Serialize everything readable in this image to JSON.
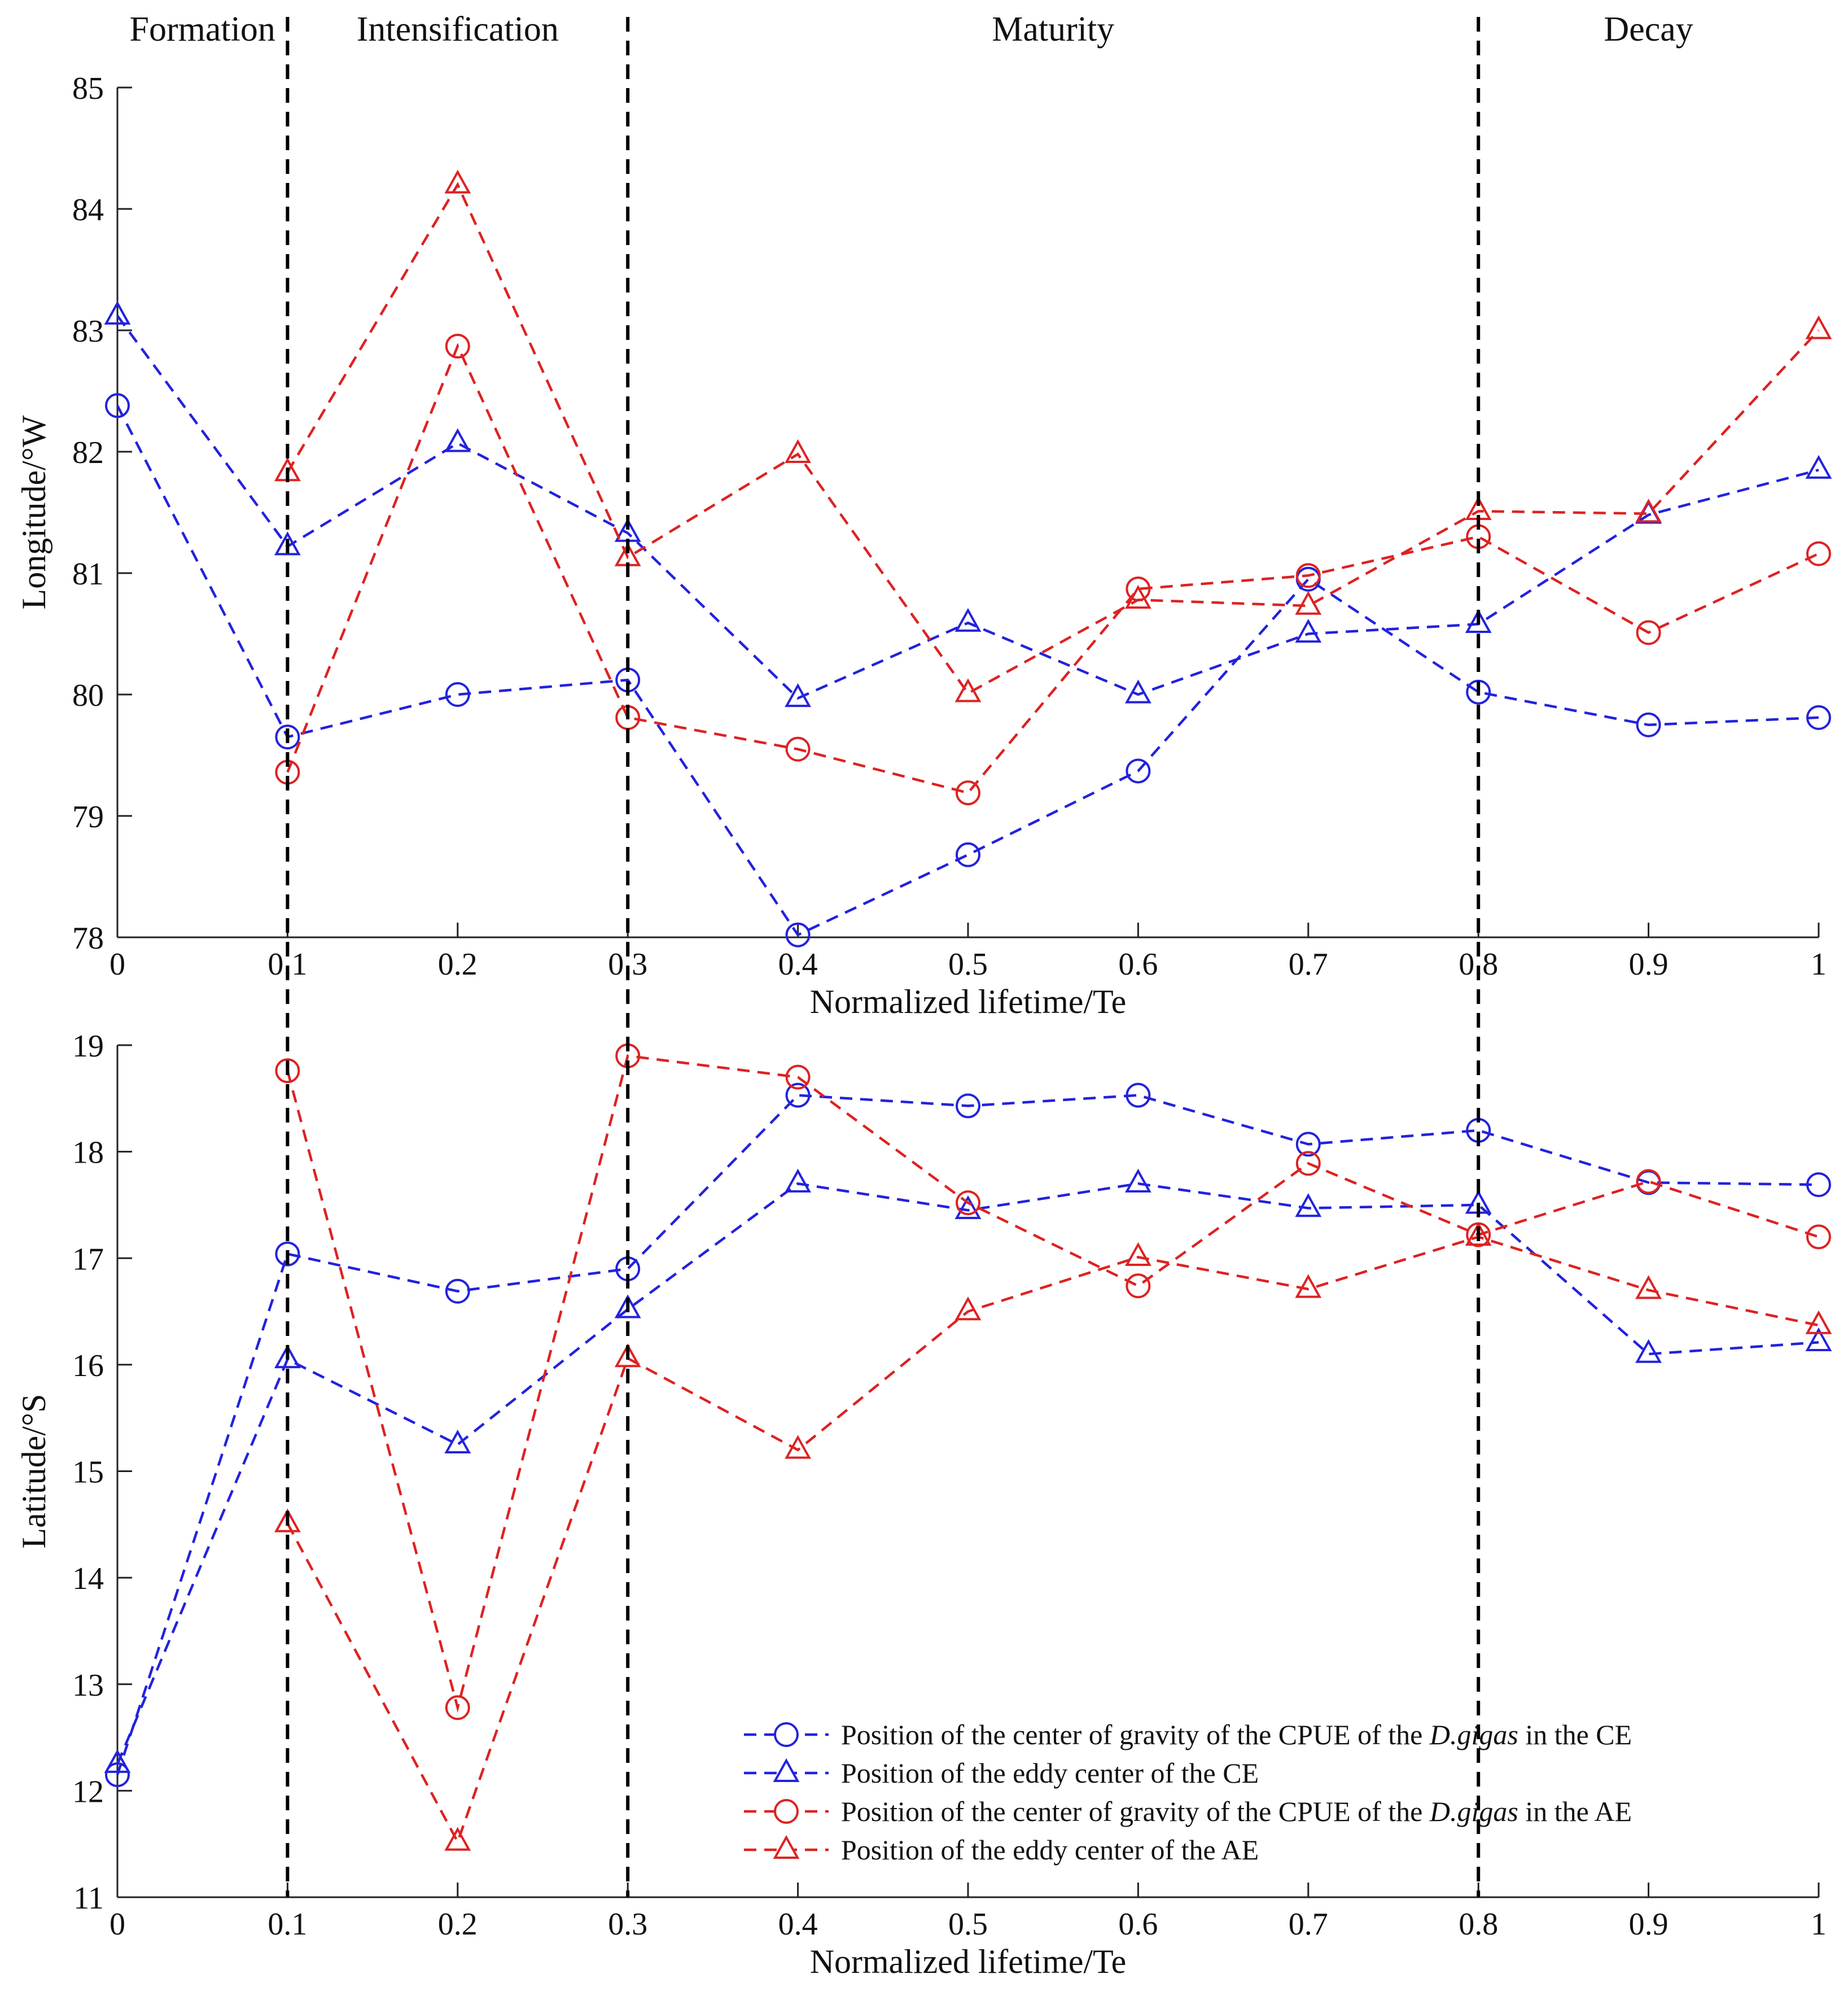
{
  "chart_data": [
    {
      "type": "line",
      "name": "longitude",
      "xlabel": "Normalized lifetime/Te",
      "ylabel": "Longitude/°W",
      "xlim": [
        0,
        1
      ],
      "ylim": [
        78,
        85
      ],
      "x": [
        0,
        0.1,
        0.2,
        0.3,
        0.4,
        0.5,
        0.6,
        0.7,
        0.8,
        0.9,
        1
      ],
      "x_tick_labels": [
        "0",
        "0.1",
        "0.2",
        "0.3",
        "0.4",
        "0.5",
        "0.6",
        "0.7",
        "0.8",
        "0.9",
        "1"
      ],
      "y_ticks": [
        78,
        79,
        80,
        81,
        82,
        83,
        84,
        85
      ],
      "y_tick_labels": [
        "78",
        "79",
        "80",
        "81",
        "82",
        "83",
        "84",
        "85"
      ],
      "series": [
        {
          "name": "Position of the center of gravity of the CPUE of the D.gigas in the CE",
          "color": "#2222dd",
          "marker": "circle",
          "values": [
            82.38,
            79.65,
            80.0,
            80.12,
            78.02,
            78.68,
            79.37,
            80.95,
            80.02,
            79.75,
            79.81
          ]
        },
        {
          "name": "Position of the eddy center of the CE",
          "color": "#2222dd",
          "marker": "triangle",
          "values": [
            83.12,
            81.22,
            82.07,
            81.33,
            79.97,
            80.59,
            80.0,
            80.5,
            80.58,
            81.48,
            81.85
          ]
        },
        {
          "name": "Position of the center of gravity of the CPUE of the D.gigas in the AE",
          "color": "#dd2222",
          "marker": "circle",
          "values": [
            null,
            79.36,
            82.87,
            79.81,
            79.55,
            79.19,
            80.87,
            80.98,
            81.3,
            80.51,
            81.16
          ]
        },
        {
          "name": "Position of the eddy center of the AE",
          "color": "#dd2222",
          "marker": "triangle",
          "values": [
            null,
            81.83,
            84.2,
            81.13,
            81.98,
            80.01,
            80.78,
            80.73,
            81.51,
            81.49,
            83.0
          ]
        }
      ]
    },
    {
      "type": "line",
      "name": "latitude",
      "xlabel": "Normalized lifetime/Te",
      "ylabel": "Latitude/°S",
      "xlim": [
        0,
        1
      ],
      "ylim": [
        11,
        19
      ],
      "x": [
        0,
        0.1,
        0.2,
        0.3,
        0.4,
        0.5,
        0.6,
        0.7,
        0.8,
        0.9,
        1
      ],
      "x_tick_labels": [
        "0",
        "0.1",
        "0.2",
        "0.3",
        "0.4",
        "0.5",
        "0.6",
        "0.7",
        "0.8",
        "0.9",
        "1"
      ],
      "y_ticks": [
        11,
        12,
        13,
        14,
        15,
        16,
        17,
        18,
        19
      ],
      "y_tick_labels": [
        "11",
        "12",
        "13",
        "14",
        "15",
        "16",
        "17",
        "18",
        "19"
      ],
      "series": [
        {
          "name": "Position of the center of gravity of the CPUE of the D.gigas in the CE",
          "color": "#2222dd",
          "marker": "circle",
          "values": [
            12.15,
            17.04,
            16.69,
            16.9,
            18.53,
            18.43,
            18.53,
            18.07,
            18.2,
            17.71,
            17.69
          ]
        },
        {
          "name": "Position of the eddy center of the CE",
          "color": "#2222dd",
          "marker": "triangle",
          "values": [
            12.25,
            16.05,
            15.25,
            16.52,
            17.7,
            17.45,
            17.7,
            17.47,
            17.5,
            16.1,
            16.21
          ]
        },
        {
          "name": "Position of the center of gravity of the CPUE of the D.gigas in the AE",
          "color": "#dd2222",
          "marker": "circle",
          "values": [
            null,
            18.76,
            12.78,
            18.9,
            18.7,
            17.52,
            16.74,
            17.89,
            17.22,
            17.72,
            17.2
          ]
        },
        {
          "name": "Position of the eddy center of the AE",
          "color": "#dd2222",
          "marker": "triangle",
          "values": [
            null,
            14.51,
            11.52,
            16.06,
            15.2,
            16.5,
            17.01,
            16.71,
            17.2,
            16.7,
            16.37
          ]
        }
      ]
    }
  ],
  "phases": [
    {
      "label": "Formation",
      "from": 0,
      "to": 0.1
    },
    {
      "label": "Intensification",
      "from": 0.1,
      "to": 0.3
    },
    {
      "label": "Maturity",
      "from": 0.3,
      "to": 0.8
    },
    {
      "label": "Decay",
      "from": 0.8,
      "to": 1.0
    }
  ],
  "phase_boundaries": [
    0.1,
    0.3,
    0.8
  ],
  "legend": [
    {
      "text": "Position of the center of gravity of the CPUE of the ",
      "species": "D.gigas",
      "suffix": " in the CE",
      "color": "#2222dd",
      "marker": "circle"
    },
    {
      "text": "Position of the eddy center of the CE",
      "species": "",
      "suffix": "",
      "color": "#2222dd",
      "marker": "triangle"
    },
    {
      "text": "Position of the center of gravity of the CPUE of the ",
      "species": "D.gigas",
      "suffix": " in the AE",
      "color": "#dd2222",
      "marker": "circle"
    },
    {
      "text": "Position of the eddy center of the AE",
      "species": "",
      "suffix": "",
      "color": "#dd2222",
      "marker": "triangle"
    }
  ]
}
